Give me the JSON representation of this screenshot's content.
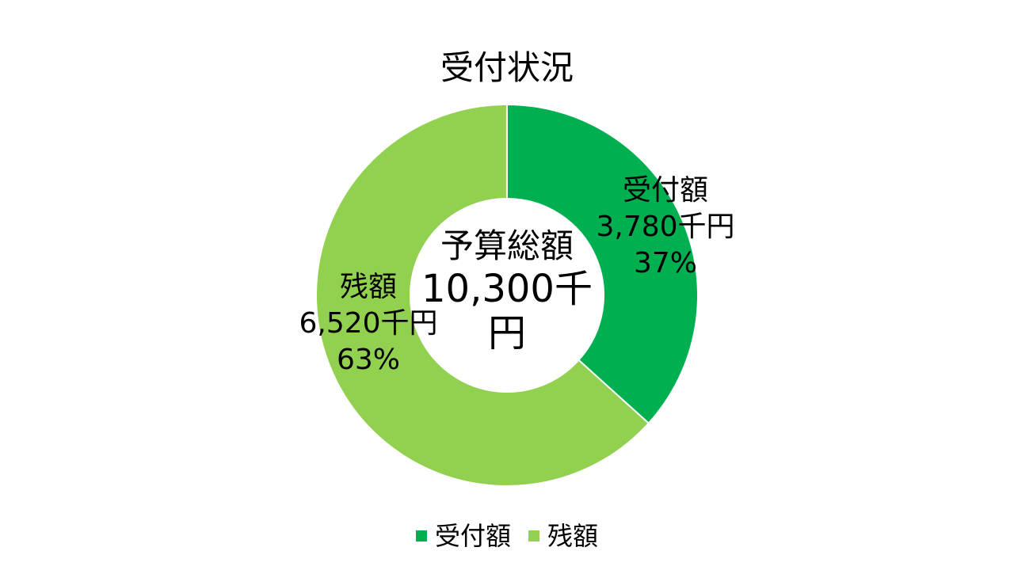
{
  "chart_data": {
    "type": "pie",
    "title": "受付状況",
    "center": {
      "title": "予算総額",
      "value": "10,300千",
      "unit": "円"
    },
    "series": [
      {
        "name": "受付額",
        "value": 3780,
        "value_text": "3,780千円",
        "percent_text": "37%",
        "color": "#00B050"
      },
      {
        "name": "残額",
        "value": 6520,
        "value_text": "6,520千円",
        "percent_text": "63%",
        "color": "#92D050"
      }
    ],
    "legend_position": "bottom"
  }
}
